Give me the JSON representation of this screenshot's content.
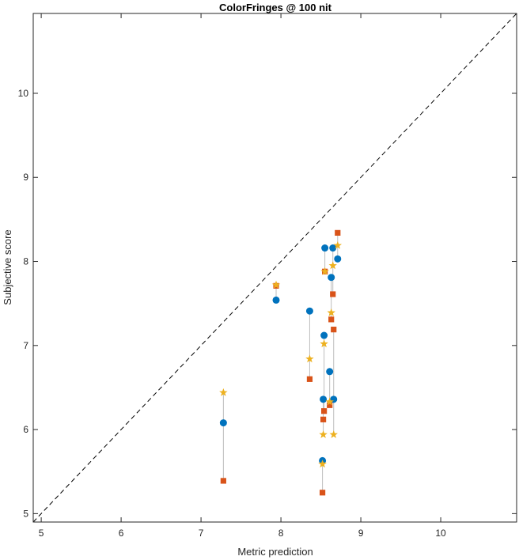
{
  "chart_data": {
    "type": "scatter",
    "title": "ColorFringes @ 100 nit",
    "xlabel": "Metric prediction",
    "ylabel": "Subjective score",
    "xlim": [
      4.9,
      10.95
    ],
    "ylim": [
      4.9,
      10.95
    ],
    "xticks": [
      5,
      6,
      7,
      8,
      9,
      10
    ],
    "yticks": [
      5,
      6,
      7,
      8,
      9,
      10
    ],
    "grid": false,
    "reference_line": {
      "x": [
        4.9,
        10.95
      ],
      "y": [
        4.9,
        10.95
      ],
      "style": "dashed",
      "color": "#000000"
    },
    "series": [
      {
        "marker": "circle",
        "color": "#0072BD",
        "x": [
          7.28,
          7.94,
          8.36,
          8.52,
          8.53,
          8.54,
          8.55,
          8.61,
          8.63,
          8.65,
          8.66,
          8.71
        ],
        "y": [
          6.08,
          7.54,
          7.41,
          5.63,
          6.36,
          7.12,
          8.16,
          6.69,
          7.81,
          8.16,
          6.36,
          8.03
        ]
      },
      {
        "marker": "square",
        "color": "#D95319",
        "x": [
          7.28,
          7.94,
          8.36,
          8.52,
          8.53,
          8.54,
          8.55,
          8.61,
          8.63,
          8.65,
          8.66,
          8.71
        ],
        "y": [
          5.39,
          7.71,
          6.6,
          5.25,
          6.12,
          6.22,
          7.88,
          6.29,
          7.31,
          7.61,
          7.19,
          8.34
        ]
      },
      {
        "marker": "star",
        "color": "#EDB120",
        "x": [
          7.28,
          7.94,
          8.36,
          8.52,
          8.53,
          8.54,
          8.55,
          8.61,
          8.63,
          8.65,
          8.66,
          8.71
        ],
        "y": [
          6.44,
          7.72,
          6.84,
          5.59,
          5.94,
          7.02,
          7.88,
          6.33,
          7.39,
          7.95,
          5.94,
          8.19
        ]
      }
    ],
    "connector_color": "#BDBDBD"
  }
}
